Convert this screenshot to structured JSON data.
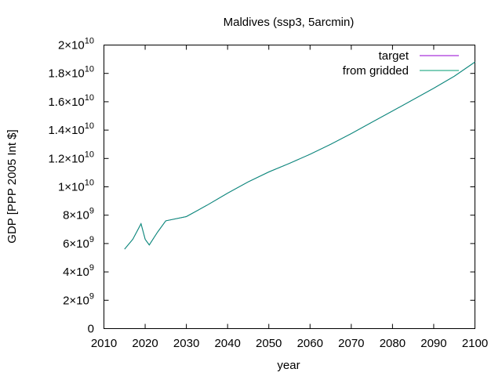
{
  "chart_data": {
    "type": "line",
    "title": "Maldives (ssp3, 5arcmin)",
    "xlabel": "year",
    "ylabel": "GDP [PPP 2005 Int $]",
    "xlim": [
      2010,
      2100
    ],
    "ylim": [
      0,
      20000000000
    ],
    "x_ticks": [
      2010,
      2020,
      2030,
      2040,
      2050,
      2060,
      2070,
      2080,
      2090,
      2100
    ],
    "y_ticks": [
      {
        "value": 0,
        "mantissa": "0",
        "exponent": ""
      },
      {
        "value": 2000000000,
        "mantissa": "2×10",
        "exponent": "9"
      },
      {
        "value": 4000000000,
        "mantissa": "4×10",
        "exponent": "9"
      },
      {
        "value": 6000000000,
        "mantissa": "6×10",
        "exponent": "9"
      },
      {
        "value": 8000000000,
        "mantissa": "8×10",
        "exponent": "9"
      },
      {
        "value": 10000000000,
        "mantissa": "1×10",
        "exponent": "10"
      },
      {
        "value": 12000000000,
        "mantissa": "1.2×10",
        "exponent": "10"
      },
      {
        "value": 14000000000,
        "mantissa": "1.4×10",
        "exponent": "10"
      },
      {
        "value": 16000000000,
        "mantissa": "1.6×10",
        "exponent": "10"
      },
      {
        "value": 18000000000,
        "mantissa": "1.8×10",
        "exponent": "10"
      },
      {
        "value": 20000000000,
        "mantissa": "2×10",
        "exponent": "10"
      }
    ],
    "grid": false,
    "legend_position": "top-right",
    "series": [
      {
        "name": "target",
        "color": "#9400d3",
        "x": [
          2015,
          2017,
          2019,
          2020,
          2021,
          2023,
          2025,
          2030,
          2035,
          2040,
          2045,
          2050,
          2055,
          2060,
          2065,
          2070,
          2075,
          2080,
          2085,
          2090,
          2095,
          2100
        ],
        "y": [
          5600000000,
          6300000000,
          7400000000,
          6300000000,
          5900000000,
          6800000000,
          7600000000,
          7900000000,
          8700000000,
          9550000000,
          10350000000,
          11050000000,
          11650000000,
          12300000000,
          13000000000,
          13750000000,
          14550000000,
          15350000000,
          16150000000,
          16950000000,
          17800000000,
          18800000000
        ]
      },
      {
        "name": "from gridded",
        "color": "#009e73",
        "x": [
          2015,
          2017,
          2019,
          2020,
          2021,
          2023,
          2025,
          2030,
          2035,
          2040,
          2045,
          2050,
          2055,
          2060,
          2065,
          2070,
          2075,
          2080,
          2085,
          2090,
          2095,
          2100
        ],
        "y": [
          5600000000,
          6300000000,
          7400000000,
          6300000000,
          5900000000,
          6800000000,
          7600000000,
          7900000000,
          8700000000,
          9550000000,
          10350000000,
          11050000000,
          11650000000,
          12300000000,
          13000000000,
          13750000000,
          14550000000,
          15350000000,
          16150000000,
          16950000000,
          17800000000,
          18800000000
        ]
      }
    ]
  }
}
